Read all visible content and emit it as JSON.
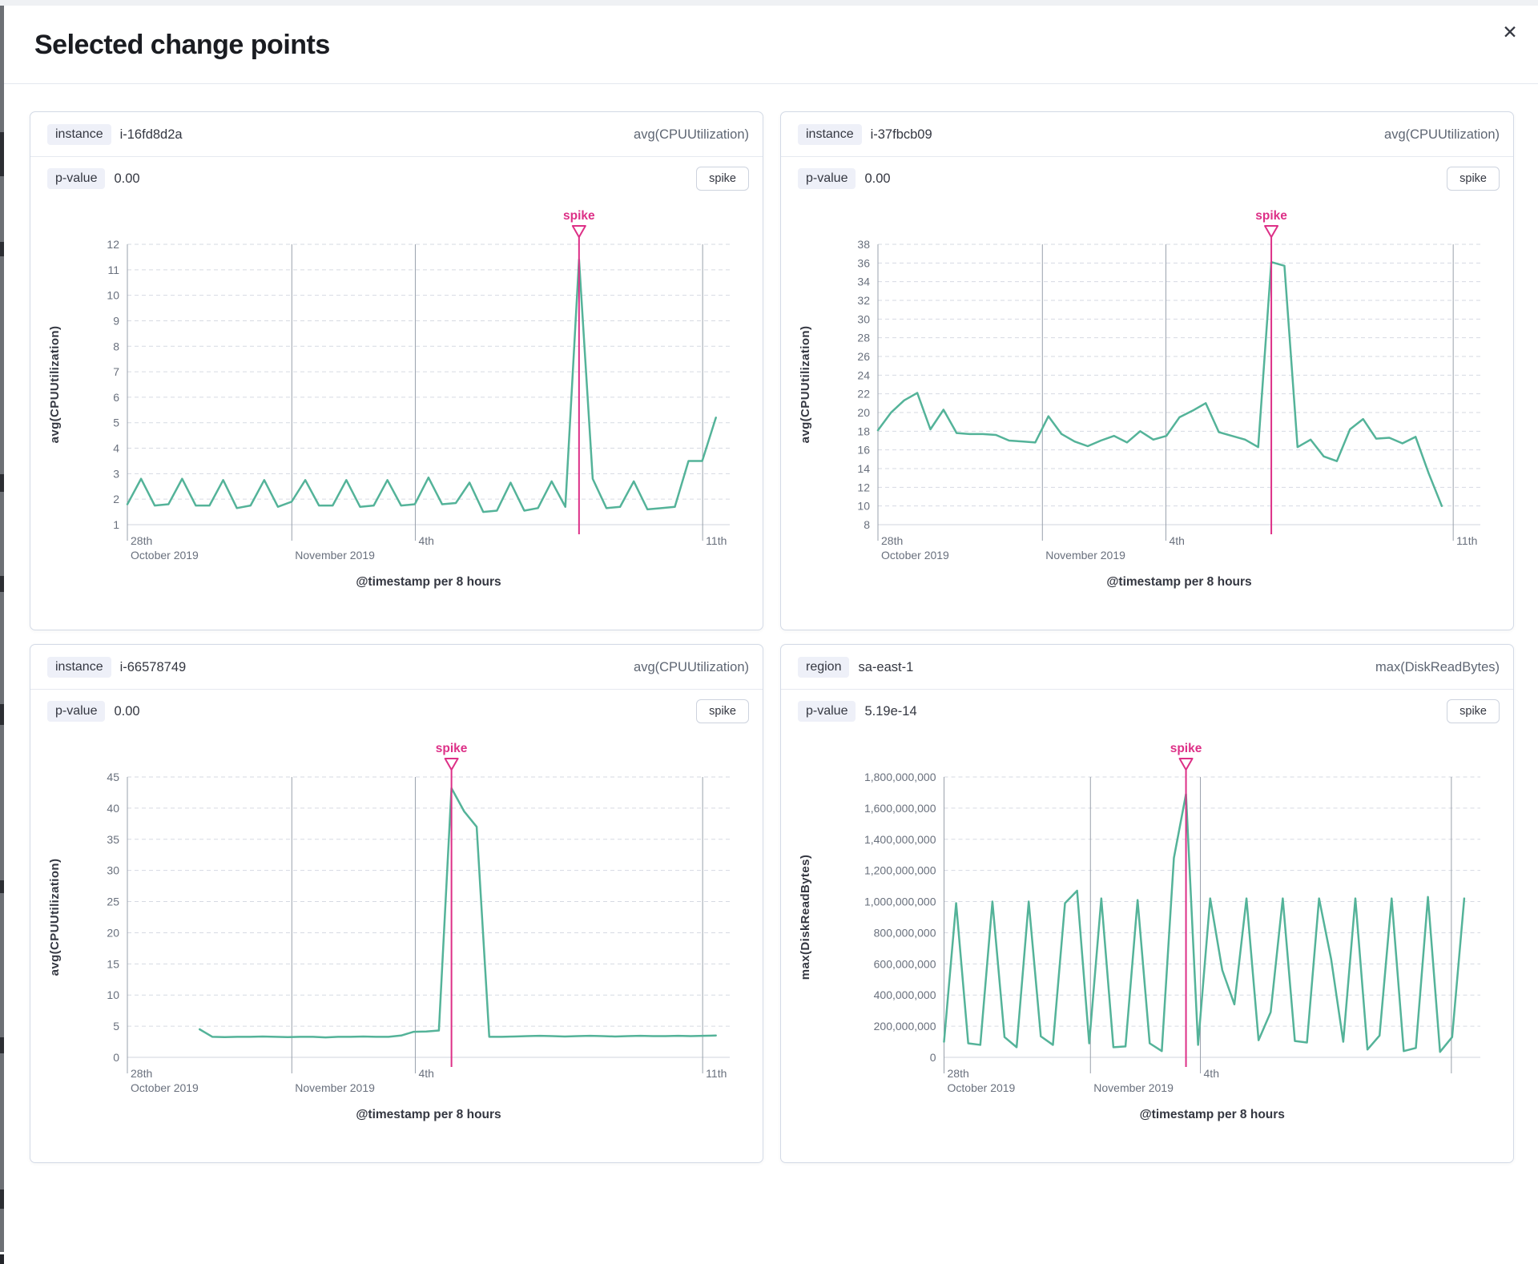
{
  "modal": {
    "title": "Selected change points",
    "close_icon": "✕"
  },
  "colors": {
    "series": "#54b399",
    "annotation": "#dd3087",
    "grid_dash": "#d6dae2",
    "grid_vert": "#9aa1ac",
    "axis_line": "#d0d4dd",
    "tick_text": "#69707d",
    "axis_title": "#343741"
  },
  "panels": [
    {
      "badge_label": "instance",
      "badge_value": "i-16fd8d2a",
      "metric_label": "avg(CPUUtilization)",
      "pvalue_label": "p-value",
      "pvalue_value": "0.00",
      "spike_button_label": "spike"
    },
    {
      "badge_label": "instance",
      "badge_value": "i-37fbcb09",
      "metric_label": "avg(CPUUtilization)",
      "pvalue_label": "p-value",
      "pvalue_value": "0.00",
      "spike_button_label": "spike"
    },
    {
      "badge_label": "instance",
      "badge_value": "i-66578749",
      "metric_label": "avg(CPUUtilization)",
      "pvalue_label": "p-value",
      "pvalue_value": "0.00",
      "spike_button_label": "spike"
    },
    {
      "badge_label": "region",
      "badge_value": "sa-east-1",
      "metric_label": "max(DiskReadBytes)",
      "pvalue_label": "p-value",
      "pvalue_value": "5.19e-14",
      "spike_button_label": "spike"
    }
  ],
  "chart_data": [
    {
      "type": "line",
      "y_label": "avg(CPUUtilization)",
      "x_axis_title": "@timestamp per 8 hours",
      "annotation_label": "spike",
      "y_min": 1,
      "y_max": 12,
      "y_ticks": [
        1,
        2,
        3,
        4,
        5,
        6,
        7,
        8,
        9,
        10,
        11,
        12
      ],
      "y_tick_labels": [
        "1",
        "2",
        "3",
        "4",
        "5",
        "6",
        "7",
        "8",
        "9",
        "10",
        "11",
        "12"
      ],
      "x_gridlines": [
        {
          "frac": 0.0,
          "line1": "28th",
          "line2": "October 2019"
        },
        {
          "frac": 0.273,
          "line2": "November 2019"
        },
        {
          "frac": 0.478,
          "line1": "4th"
        },
        {
          "frac": 0.955,
          "line1": "11th"
        }
      ],
      "line": {
        "start_frac": 0.0,
        "end_frac": 0.977,
        "spike_index": 33,
        "values": [
          1.8,
          2.8,
          1.75,
          1.8,
          2.8,
          1.75,
          1.75,
          2.75,
          1.65,
          1.75,
          2.75,
          1.7,
          1.9,
          2.75,
          1.75,
          1.75,
          2.75,
          1.7,
          1.75,
          2.75,
          1.75,
          1.8,
          2.85,
          1.8,
          1.85,
          2.65,
          1.5,
          1.55,
          2.65,
          1.55,
          1.65,
          2.7,
          1.7,
          11.4,
          2.8,
          1.65,
          1.7,
          2.7,
          1.6,
          1.65,
          1.7,
          3.5,
          3.5,
          5.2
        ]
      }
    },
    {
      "type": "line",
      "y_label": "avg(CPUUtilization)",
      "x_axis_title": "@timestamp per 8 hours",
      "annotation_label": "spike",
      "y_min": 8,
      "y_max": 38,
      "y_ticks": [
        8,
        10,
        12,
        14,
        16,
        18,
        20,
        22,
        24,
        26,
        28,
        30,
        32,
        34,
        36,
        38
      ],
      "y_tick_labels": [
        "8",
        "10",
        "12",
        "14",
        "16",
        "18",
        "20",
        "22",
        "24",
        "26",
        "28",
        "30",
        "32",
        "34",
        "36",
        "38"
      ],
      "x_gridlines": [
        {
          "frac": 0.0,
          "line1": "28th",
          "line2": "October 2019"
        },
        {
          "frac": 0.273,
          "line2": "November 2019"
        },
        {
          "frac": 0.478,
          "line1": "4th"
        },
        {
          "frac": 0.955,
          "line1": "11th"
        }
      ],
      "line": {
        "start_frac": 0.0,
        "end_frac": 0.936,
        "spike_index": 30,
        "values": [
          18.1,
          20.0,
          21.3,
          22.1,
          18.2,
          20.3,
          17.8,
          17.7,
          17.7,
          17.6,
          17.0,
          16.9,
          16.8,
          19.6,
          17.7,
          16.9,
          16.4,
          17.0,
          17.5,
          16.8,
          18.0,
          17.1,
          17.5,
          19.5,
          20.2,
          21.0,
          17.9,
          17.5,
          17.1,
          16.3,
          36.1,
          35.7,
          16.3,
          17.1,
          15.3,
          14.8,
          18.2,
          19.3,
          17.2,
          17.3,
          16.7,
          17.4,
          13.5,
          10.0
        ]
      }
    },
    {
      "type": "line",
      "y_label": "avg(CPUUtilization)",
      "x_axis_title": "@timestamp per 8 hours",
      "annotation_label": "spike",
      "y_min": 0,
      "y_max": 45,
      "y_ticks": [
        0,
        5,
        10,
        15,
        20,
        25,
        30,
        35,
        40,
        45
      ],
      "y_tick_labels": [
        "0",
        "5",
        "10",
        "15",
        "20",
        "25",
        "30",
        "35",
        "40",
        "45"
      ],
      "x_gridlines": [
        {
          "frac": 0.0,
          "line1": "28th",
          "line2": "October 2019"
        },
        {
          "frac": 0.273,
          "line2": "November 2019"
        },
        {
          "frac": 0.478,
          "line1": "4th"
        },
        {
          "frac": 0.955,
          "line1": "11th"
        }
      ],
      "line": {
        "start_frac": 0.12,
        "end_frac": 0.977,
        "spike_index": 20,
        "values": [
          4.5,
          3.3,
          3.25,
          3.3,
          3.3,
          3.35,
          3.3,
          3.25,
          3.3,
          3.3,
          3.2,
          3.3,
          3.3,
          3.35,
          3.3,
          3.3,
          3.5,
          4.1,
          4.15,
          4.3,
          43.2,
          39.5,
          37.0,
          3.3,
          3.3,
          3.35,
          3.4,
          3.45,
          3.4,
          3.35,
          3.4,
          3.45,
          3.4,
          3.35,
          3.4,
          3.45,
          3.4,
          3.4,
          3.45,
          3.4,
          3.45,
          3.5
        ]
      }
    },
    {
      "type": "line",
      "y_label": "max(DiskReadBytes)",
      "x_axis_title": "@timestamp per 8 hours",
      "annotation_label": "spike",
      "y_min": 0,
      "y_max": 1800000000,
      "y_ticks": [
        0,
        200000000,
        400000000,
        600000000,
        800000000,
        1000000000,
        1200000000,
        1400000000,
        1600000000,
        1800000000
      ],
      "y_tick_labels": [
        "0",
        "200,000,000",
        "400,000,000",
        "600,000,000",
        "800,000,000",
        "1,000,000,000",
        "1,200,000,000",
        "1,400,000,000",
        "1,600,000,000",
        "1,800,000,000"
      ],
      "x_gridlines": [
        {
          "frac": 0.0,
          "line1": "28th",
          "line2": "October 2019"
        },
        {
          "frac": 0.273,
          "line2": "November 2019"
        },
        {
          "frac": 0.478,
          "line1": "4th"
        },
        {
          "frac": 0.946
        }
      ],
      "line": {
        "start_frac": 0.0,
        "end_frac": 0.97,
        "spike_index": 20,
        "values": [
          100000000.0,
          990000000.0,
          90000000.0,
          80000000.0,
          1000000000.0,
          130000000.0,
          65000000.0,
          1000000000.0,
          135000000.0,
          80000000.0,
          990000000.0,
          1070000000.0,
          90000000.0,
          1020000000.0,
          65000000.0,
          70000000.0,
          1010000000.0,
          90000000.0,
          40000000.0,
          1280000000.0,
          1690000000.0,
          80000000.0,
          1020000000.0,
          560000000.0,
          340000000.0,
          1020000000.0,
          110000000.0,
          290000000.0,
          1020000000.0,
          105000000.0,
          95000000.0,
          1020000000.0,
          630000000.0,
          100000000.0,
          1020000000.0,
          50000000.0,
          140000000.0,
          1020000000.0,
          40000000.0,
          60000000.0,
          1030000000.0,
          35000000.0,
          130000000.0,
          1020000000.0
        ]
      }
    }
  ]
}
